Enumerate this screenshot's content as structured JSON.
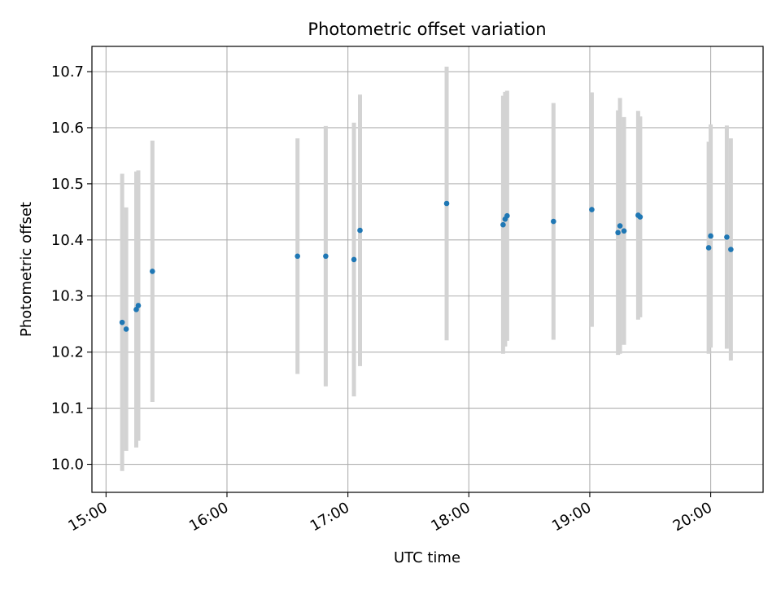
{
  "chart_data": {
    "type": "scatter",
    "title": "Photometric offset variation",
    "xlabel": "UTC time",
    "ylabel": "Photometric offset",
    "x_type": "time",
    "xlim": [
      "14:53",
      "20:26"
    ],
    "ylim": [
      9.95,
      10.745
    ],
    "x_ticks": [
      "15:00",
      "16:00",
      "17:00",
      "18:00",
      "19:00",
      "20:00"
    ],
    "y_ticks": [
      10.0,
      10.1,
      10.2,
      10.3,
      10.4,
      10.5,
      10.6,
      10.7
    ],
    "y_tick_labels": [
      "10.0",
      "10.1",
      "10.2",
      "10.3",
      "10.4",
      "10.5",
      "10.6",
      "10.7"
    ],
    "grid": true,
    "colors": {
      "marker": "#1f77b4",
      "errorbar": "#d3d3d3",
      "grid": "#b0b0b0"
    },
    "points": [
      {
        "x": "15:08",
        "y": 10.253,
        "ymin": 9.988,
        "ymax": 10.518
      },
      {
        "x": "15:10",
        "y": 10.241,
        "ymin": 10.024,
        "ymax": 10.458
      },
      {
        "x": "15:15",
        "y": 10.276,
        "ymin": 10.03,
        "ymax": 10.522
      },
      {
        "x": "15:16",
        "y": 10.283,
        "ymin": 10.042,
        "ymax": 10.524
      },
      {
        "x": "15:23",
        "y": 10.344,
        "ymin": 10.111,
        "ymax": 10.577
      },
      {
        "x": "16:35",
        "y": 10.371,
        "ymin": 10.161,
        "ymax": 10.581
      },
      {
        "x": "16:49",
        "y": 10.371,
        "ymin": 10.139,
        "ymax": 10.603
      },
      {
        "x": "17:03",
        "y": 10.365,
        "ymin": 10.121,
        "ymax": 10.609
      },
      {
        "x": "17:06",
        "y": 10.417,
        "ymin": 10.175,
        "ymax": 10.659
      },
      {
        "x": "17:49",
        "y": 10.465,
        "ymin": 10.221,
        "ymax": 10.709
      },
      {
        "x": "18:17",
        "y": 10.427,
        "ymin": 10.197,
        "ymax": 10.657
      },
      {
        "x": "18:18",
        "y": 10.437,
        "ymin": 10.21,
        "ymax": 10.664
      },
      {
        "x": "18:19",
        "y": 10.443,
        "ymin": 10.22,
        "ymax": 10.666
      },
      {
        "x": "18:42",
        "y": 10.433,
        "ymin": 10.222,
        "ymax": 10.644
      },
      {
        "x": "19:01",
        "y": 10.454,
        "ymin": 10.245,
        "ymax": 10.663
      },
      {
        "x": "19:14",
        "y": 10.413,
        "ymin": 10.195,
        "ymax": 10.631
      },
      {
        "x": "19:15",
        "y": 10.425,
        "ymin": 10.197,
        "ymax": 10.653
      },
      {
        "x": "19:17",
        "y": 10.416,
        "ymin": 10.213,
        "ymax": 10.619
      },
      {
        "x": "19:24",
        "y": 10.444,
        "ymin": 10.258,
        "ymax": 10.63
      },
      {
        "x": "19:25",
        "y": 10.441,
        "ymin": 10.262,
        "ymax": 10.62
      },
      {
        "x": "19:59",
        "y": 10.386,
        "ymin": 10.197,
        "ymax": 10.575
      },
      {
        "x": "20:00",
        "y": 10.407,
        "ymin": 10.208,
        "ymax": 10.606
      },
      {
        "x": "20:08",
        "y": 10.405,
        "ymin": 10.206,
        "ymax": 10.604
      },
      {
        "x": "20:10",
        "y": 10.383,
        "ymin": 10.185,
        "ymax": 10.581
      }
    ]
  }
}
